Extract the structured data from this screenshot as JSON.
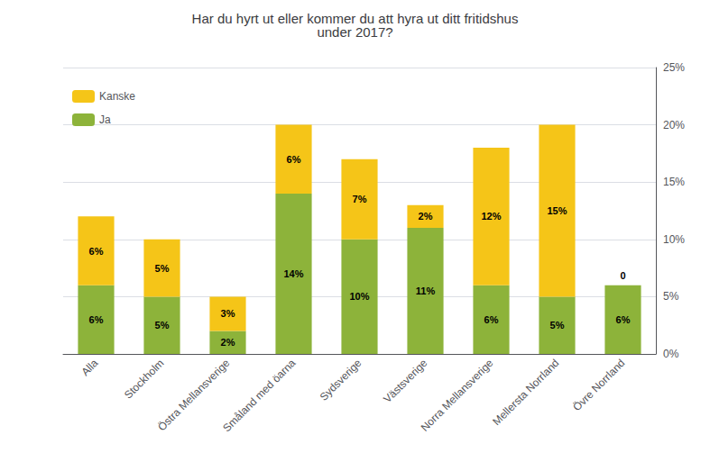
{
  "chart_data": {
    "type": "bar",
    "stacked": true,
    "title": "Har du hyrt ut eller kommer du att hyra ut ditt fritidshus\nunder 2017?",
    "categories": [
      "Alla",
      "Stockholm",
      "Östra Mellansverige",
      "Småland med öarna",
      "Sydsverige",
      "Västsverige",
      "Norra Mellansverige",
      "Mellersta Norrland",
      "Övre Norrland"
    ],
    "series": [
      {
        "name": "Ja",
        "color": "#8db33a",
        "values": [
          6,
          5,
          2,
          14,
          10,
          11,
          6,
          5,
          6
        ],
        "value_labels": [
          "6%",
          "5%",
          "2%",
          "14%",
          "10%",
          "11%",
          "6%",
          "5%",
          "6%"
        ]
      },
      {
        "name": "Kanske",
        "color": "#f5c518",
        "values": [
          6,
          5,
          3,
          6,
          7,
          2,
          12,
          15,
          0
        ],
        "value_labels": [
          "6%",
          "5%",
          "3%",
          "6%",
          "7%",
          "2%",
          "12%",
          "15%",
          "0"
        ]
      }
    ],
    "ylim": [
      0,
      25
    ],
    "yticks": [
      {
        "value": 0,
        "label": "0%"
      },
      {
        "value": 5,
        "label": "5%"
      },
      {
        "value": 10,
        "label": "10%"
      },
      {
        "value": 15,
        "label": "15%"
      },
      {
        "value": 20,
        "label": "20%"
      },
      {
        "value": 25,
        "label": "25%"
      }
    ],
    "grid": true,
    "legend": "upper left",
    "data_labels": true
  }
}
